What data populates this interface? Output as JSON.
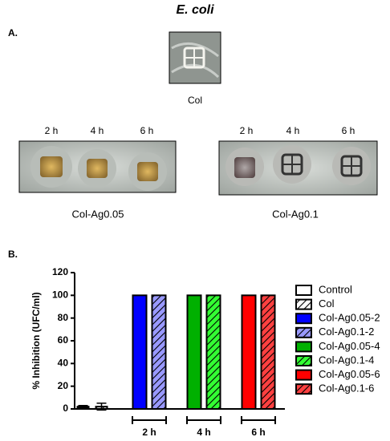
{
  "title": "E. coli",
  "panel_a": {
    "label": "A.",
    "control": "Col",
    "samples": [
      {
        "name": "Col-Ag0.05",
        "times": [
          "2 h",
          "4 h",
          "6 h"
        ]
      },
      {
        "name": "Col-Ag0.1",
        "times": [
          "2 h",
          "4 h",
          "6 h"
        ]
      }
    ]
  },
  "chart_data": {
    "type": "bar",
    "panel_label": "B.",
    "ylabel": "% Inhibition (UFC/ml)",
    "categories": [
      null,
      "2 h",
      "4 h",
      "6 h"
    ],
    "ylim": [
      0,
      120
    ],
    "yticks": [
      0,
      20,
      40,
      60,
      80,
      100,
      120
    ],
    "grid": false,
    "legend": "right",
    "series": [
      {
        "name": "Control",
        "color": "#ffffff",
        "hatch": false,
        "values": [
          2,
          null,
          null,
          null
        ],
        "errors": [
          1,
          null,
          null,
          null
        ]
      },
      {
        "name": "Col",
        "color": "#ffffff",
        "hatch": true,
        "values": [
          2,
          null,
          null,
          null
        ],
        "errors": [
          3,
          null,
          null,
          null
        ]
      },
      {
        "name": "Col-Ag0.05-2",
        "color": "#0000ff",
        "hatch": false,
        "values": [
          null,
          100,
          null,
          null
        ]
      },
      {
        "name": "Col-Ag0.1-2",
        "color": "#9999ff",
        "hatch": true,
        "values": [
          null,
          100,
          null,
          null
        ]
      },
      {
        "name": "Col-Ag0.05-4",
        "color": "#00b000",
        "hatch": false,
        "values": [
          null,
          null,
          100,
          null
        ]
      },
      {
        "name": "Col-Ag0.1-4",
        "color": "#33ff33",
        "hatch": true,
        "values": [
          null,
          null,
          100,
          null
        ]
      },
      {
        "name": "Col-Ag0.05-6",
        "color": "#ff0000",
        "hatch": false,
        "values": [
          null,
          null,
          null,
          100
        ]
      },
      {
        "name": "Col-Ag0.1-6",
        "color": "#ff4040",
        "hatch": true,
        "values": [
          null,
          null,
          null,
          100
        ]
      }
    ]
  }
}
